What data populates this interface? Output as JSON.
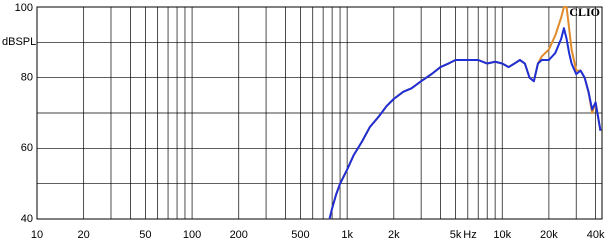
{
  "chart_data": {
    "type": "line",
    "y_label": "dBSPL",
    "x_label": "Hz",
    "annotation": "CLIO",
    "x_scale": "log",
    "grid": true,
    "xlim": [
      10,
      44000
    ],
    "ylim": [
      40,
      100
    ],
    "xticks": [
      10,
      20,
      50,
      100,
      200,
      500,
      {
        "value": 1000,
        "label": "1k"
      },
      {
        "value": 2000,
        "label": "2k"
      },
      {
        "value": 5000,
        "label": "5k"
      },
      {
        "value": 10000,
        "label": "10k"
      },
      {
        "value": 20000,
        "label": "20k"
      },
      {
        "value": 40000,
        "label": "40k"
      }
    ],
    "xminor": [
      30,
      40,
      60,
      70,
      80,
      90,
      300,
      400,
      600,
      700,
      800,
      900,
      3000,
      4000,
      6000,
      7000,
      8000,
      9000,
      30000
    ],
    "yticks": [
      40,
      60,
      80,
      100
    ],
    "yminor": [
      50,
      70,
      90
    ],
    "x": [
      770,
      800,
      850,
      900,
      1000,
      1100,
      1250,
      1400,
      1600,
      1800,
      2000,
      2300,
      2600,
      3000,
      3500,
      4000,
      4500,
      5000,
      6000,
      7000,
      8000,
      9000,
      10000,
      11000,
      12000,
      13000,
      14000,
      15000,
      16000,
      17000,
      18000,
      20000,
      22000,
      24000,
      25000,
      26000,
      27000,
      28000,
      30000,
      32000,
      34000,
      36000,
      38000,
      40000,
      43000
    ],
    "series": [
      {
        "color": "#e08a2c",
        "values": [
          40,
          43,
          47,
          50,
          54,
          58,
          62,
          66,
          69,
          72,
          74,
          76,
          77,
          79,
          81,
          83,
          84,
          85,
          85,
          85,
          84,
          84.5,
          84,
          83,
          84,
          85,
          84,
          80,
          79,
          84,
          86,
          88,
          92,
          97,
          100,
          100,
          94,
          88,
          82,
          82,
          80,
          76,
          70,
          73,
          65
        ]
      },
      {
        "color": "#1f2fd6",
        "values": [
          40,
          43,
          47,
          50,
          54,
          58,
          62,
          66,
          69,
          72,
          74,
          76,
          77,
          79,
          81,
          83,
          84,
          85,
          85,
          85,
          84,
          84.5,
          84,
          83,
          84,
          85,
          84,
          80,
          79,
          84,
          85,
          85,
          87,
          91,
          94,
          91,
          87,
          84,
          81,
          82,
          80,
          76,
          71,
          73,
          65
        ]
      }
    ]
  }
}
